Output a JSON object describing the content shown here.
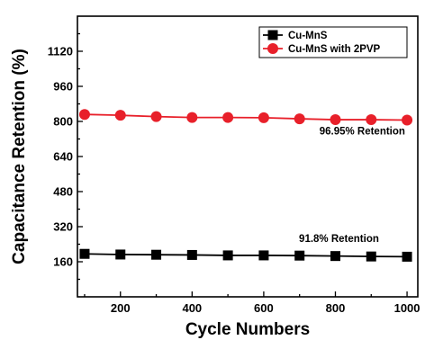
{
  "chart_data": {
    "type": "line",
    "xlabel": "Cycle Numbers",
    "ylabel": "Capacitance Retention (%)",
    "xlim": [
      80,
      1030
    ],
    "ylim": [
      0,
      1280
    ],
    "x_ticks": [
      200,
      400,
      600,
      800,
      1000
    ],
    "y_ticks": [
      160,
      320,
      480,
      640,
      800,
      960,
      1120
    ],
    "x": [
      100,
      200,
      300,
      400,
      500,
      600,
      700,
      800,
      900,
      1000
    ],
    "series": [
      {
        "name": "Cu-MnS",
        "color": "#000000",
        "marker": "square",
        "values": [
          196,
          193,
          192,
          191,
          189,
          189,
          188,
          186,
          184,
          183
        ]
      },
      {
        "name": "Cu-MnS with 2PVP",
        "color": "#e8202a",
        "marker": "circle",
        "values": [
          832,
          828,
          822,
          818,
          818,
          817,
          812,
          808,
          808,
          806
        ]
      }
    ],
    "legend_position": "top-right",
    "annotations": [
      {
        "text": "96.95% Retention",
        "x": 875,
        "y": 740
      },
      {
        "text": "91.8% Retention",
        "x": 810,
        "y": 250
      }
    ]
  }
}
